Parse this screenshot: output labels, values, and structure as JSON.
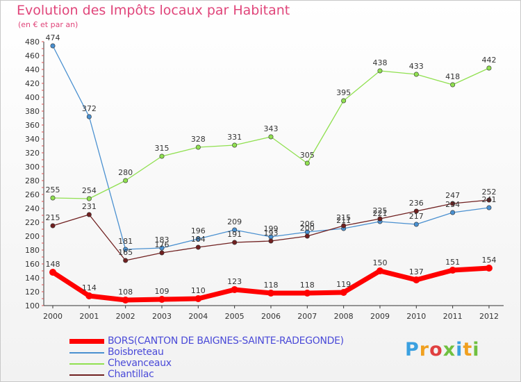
{
  "header": {
    "title": "Evolution des Impôts locaux par Habitant",
    "subtitle": "(en € et par an)"
  },
  "logo_text": "Proxiti",
  "chart_data": {
    "type": "line",
    "title": "Evolution des Impôts locaux par Habitant",
    "subtitle": "(en € et par an)",
    "x": [
      "2000",
      "2001",
      "2002",
      "2003",
      "2004",
      "2005",
      "2006",
      "2007",
      "2008",
      "2009",
      "2010",
      "2011",
      "2012"
    ],
    "ylim": [
      100,
      480
    ],
    "yticks": [
      100,
      120,
      140,
      160,
      180,
      200,
      220,
      240,
      260,
      280,
      300,
      320,
      340,
      360,
      380,
      400,
      420,
      440,
      460,
      480
    ],
    "grid": false,
    "legend_position": "bottom",
    "series": [
      {
        "name": "BORS(CANTON DE BAIGNES-SAINTE-RADEGONDE)",
        "color": "#ff0000",
        "values": [
          148,
          114,
          108,
          109,
          110,
          123,
          118,
          118,
          119,
          150,
          137,
          151,
          154
        ]
      },
      {
        "name": "Boisbreteau",
        "color": "#4a90d0",
        "values": [
          474,
          372,
          181,
          183,
          196,
          209,
          199,
          206,
          211,
          221,
          217,
          234,
          241
        ]
      },
      {
        "name": "Chevanceaux",
        "color": "#90e050",
        "values": [
          255,
          254,
          280,
          315,
          328,
          331,
          343,
          305,
          395,
          438,
          433,
          418,
          442
        ]
      },
      {
        "name": "Chantillac",
        "color": "#702020",
        "values": [
          215,
          231,
          165,
          176,
          184,
          191,
          193,
          200,
          215,
          225,
          236,
          247,
          252
        ]
      }
    ]
  }
}
